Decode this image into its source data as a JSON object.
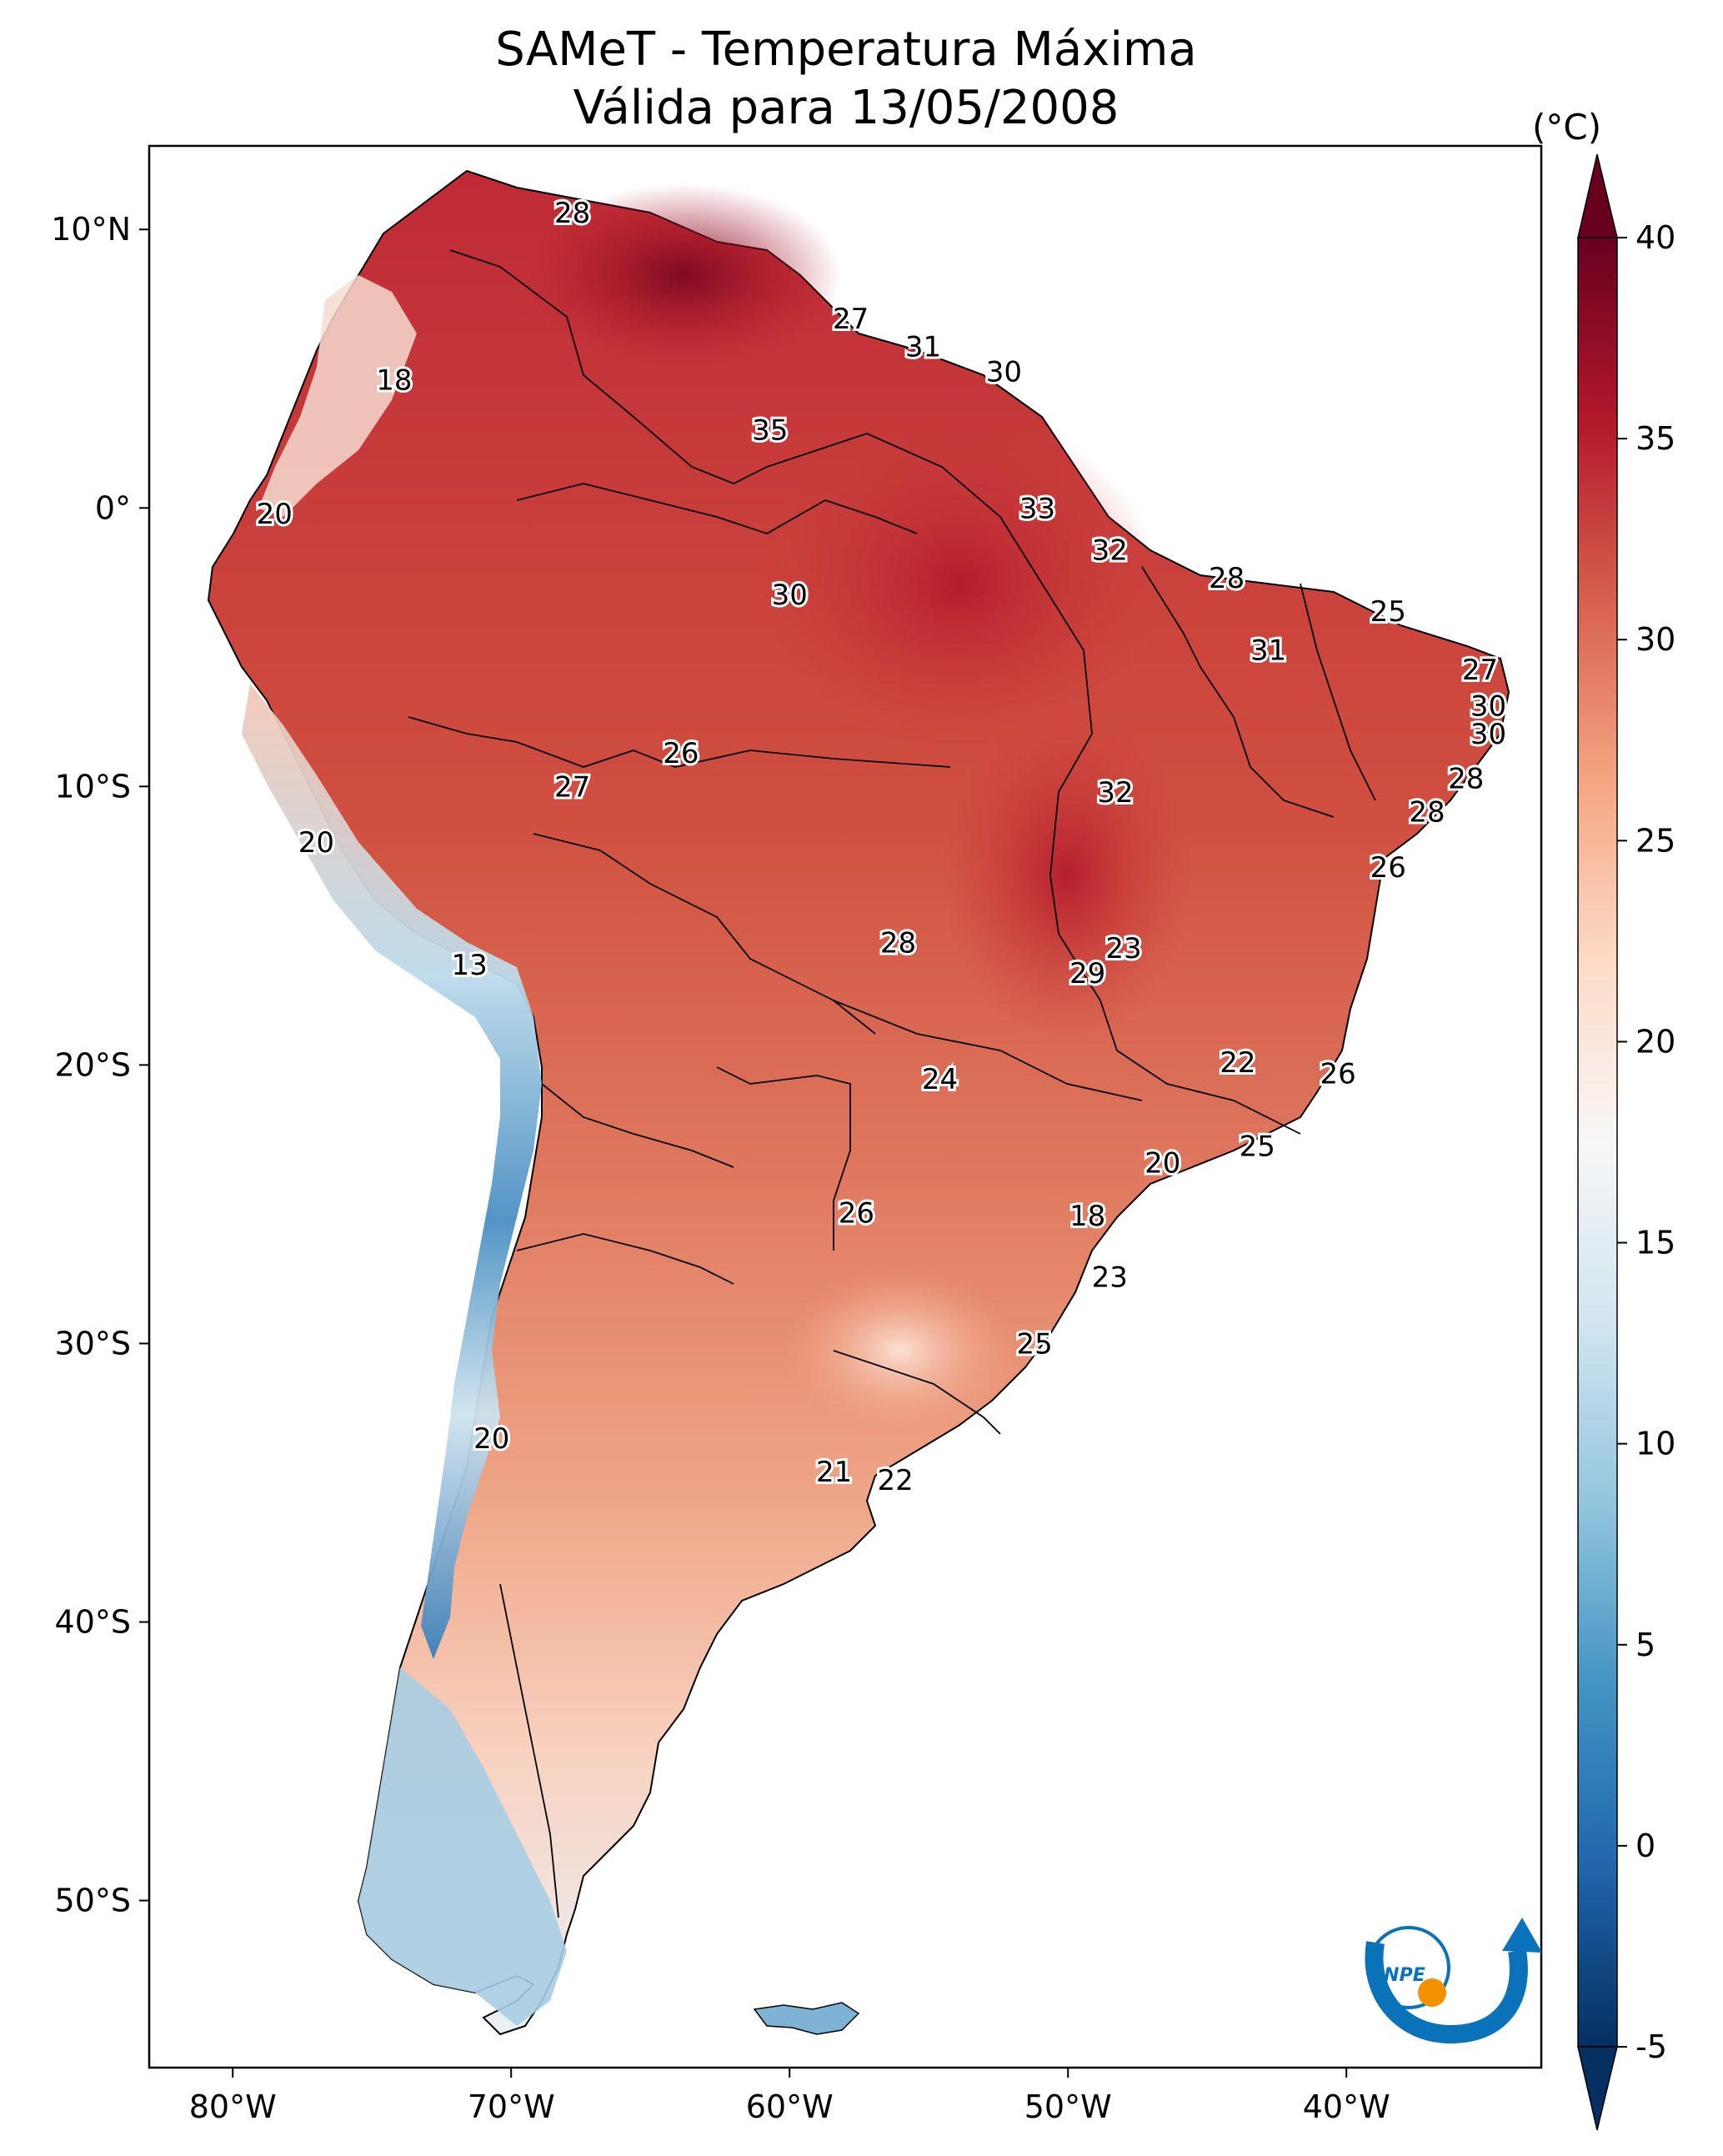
{
  "title": {
    "line1": "SAMeT - Temperatura Máxima",
    "line2": "Válida para 13/05/2008"
  },
  "map": {
    "lon_range": [
      -83,
      -33
    ],
    "lat_range": [
      -56,
      13
    ],
    "lon_ticks": [
      {
        "value": -80,
        "label": "80°W"
      },
      {
        "value": -70,
        "label": "70°W"
      },
      {
        "value": -60,
        "label": "60°W"
      },
      {
        "value": -50,
        "label": "50°W"
      },
      {
        "value": -40,
        "label": "40°W"
      }
    ],
    "lat_ticks": [
      {
        "value": 10,
        "label": "10°N"
      },
      {
        "value": 0,
        "label": "0°"
      },
      {
        "value": -10,
        "label": "10°S"
      },
      {
        "value": -20,
        "label": "20°S"
      },
      {
        "value": -30,
        "label": "30°S"
      },
      {
        "value": -40,
        "label": "40°S"
      },
      {
        "value": -50,
        "label": "50°S"
      }
    ],
    "city_values": [
      {
        "lon": -67.8,
        "lat": 10.6,
        "value": "28"
      },
      {
        "lon": -74.2,
        "lat": 4.6,
        "value": "18"
      },
      {
        "lon": -78.5,
        "lat": -0.2,
        "value": "20"
      },
      {
        "lon": -57.8,
        "lat": 6.8,
        "value": "27"
      },
      {
        "lon": -55.2,
        "lat": 5.8,
        "value": "31"
      },
      {
        "lon": -52.3,
        "lat": 4.9,
        "value": "30"
      },
      {
        "lon": -60.7,
        "lat": 2.8,
        "value": "35"
      },
      {
        "lon": -51.1,
        "lat": 0.0,
        "value": "33"
      },
      {
        "lon": -48.5,
        "lat": -1.5,
        "value": "32"
      },
      {
        "lon": -60.0,
        "lat": -3.1,
        "value": "30"
      },
      {
        "lon": -44.3,
        "lat": -2.5,
        "value": "28"
      },
      {
        "lon": -38.5,
        "lat": -3.7,
        "value": "25"
      },
      {
        "lon": -42.8,
        "lat": -5.1,
        "value": "31"
      },
      {
        "lon": -35.2,
        "lat": -5.8,
        "value": "27"
      },
      {
        "lon": -34.9,
        "lat": -7.1,
        "value": "30"
      },
      {
        "lon": -34.9,
        "lat": -8.1,
        "value": "30"
      },
      {
        "lon": -63.9,
        "lat": -8.8,
        "value": "26"
      },
      {
        "lon": -67.8,
        "lat": -10.0,
        "value": "27"
      },
      {
        "lon": -48.3,
        "lat": -10.2,
        "value": "32"
      },
      {
        "lon": -35.7,
        "lat": -9.7,
        "value": "28"
      },
      {
        "lon": -37.1,
        "lat": -10.9,
        "value": "28"
      },
      {
        "lon": -77.0,
        "lat": -12.0,
        "value": "20"
      },
      {
        "lon": -38.5,
        "lat": -12.9,
        "value": "26"
      },
      {
        "lon": -71.5,
        "lat": -16.4,
        "value": "13"
      },
      {
        "lon": -56.1,
        "lat": -15.6,
        "value": "28"
      },
      {
        "lon": -48.0,
        "lat": -15.8,
        "value": "23"
      },
      {
        "lon": -49.3,
        "lat": -16.7,
        "value": "29"
      },
      {
        "lon": -54.6,
        "lat": -20.5,
        "value": "24"
      },
      {
        "lon": -43.9,
        "lat": -19.9,
        "value": "22"
      },
      {
        "lon": -40.3,
        "lat": -20.3,
        "value": "26"
      },
      {
        "lon": -43.2,
        "lat": -22.9,
        "value": "25"
      },
      {
        "lon": -46.6,
        "lat": -23.5,
        "value": "20"
      },
      {
        "lon": -57.6,
        "lat": -25.3,
        "value": "26"
      },
      {
        "lon": -49.3,
        "lat": -25.4,
        "value": "18"
      },
      {
        "lon": -48.5,
        "lat": -27.6,
        "value": "23"
      },
      {
        "lon": -51.2,
        "lat": -30.0,
        "value": "25"
      },
      {
        "lon": -70.7,
        "lat": -33.4,
        "value": "20"
      },
      {
        "lon": -58.4,
        "lat": -34.6,
        "value": "21"
      },
      {
        "lon": -56.2,
        "lat": -34.9,
        "value": "22"
      }
    ]
  },
  "colorbar": {
    "unit": "(°C)",
    "min": -5,
    "max": 40,
    "ticks": [
      {
        "value": 40,
        "label": "40"
      },
      {
        "value": 35,
        "label": "35"
      },
      {
        "value": 30,
        "label": "30"
      },
      {
        "value": 25,
        "label": "25"
      },
      {
        "value": 20,
        "label": "20"
      },
      {
        "value": 15,
        "label": "15"
      },
      {
        "value": 10,
        "label": "10"
      },
      {
        "value": 5,
        "label": "5"
      },
      {
        "value": 0,
        "label": "0"
      },
      {
        "value": -5,
        "label": "-5"
      }
    ],
    "colors": [
      "#053061",
      "#2166ac",
      "#4393c3",
      "#92c5de",
      "#d1e5f0",
      "#f7f7f7",
      "#fddbc7",
      "#f4a582",
      "#d6604d",
      "#b2182b",
      "#67001f"
    ]
  },
  "logo": {
    "text": "INPE",
    "accent_color": "#0a72b8",
    "dot_color": "#f39200"
  }
}
